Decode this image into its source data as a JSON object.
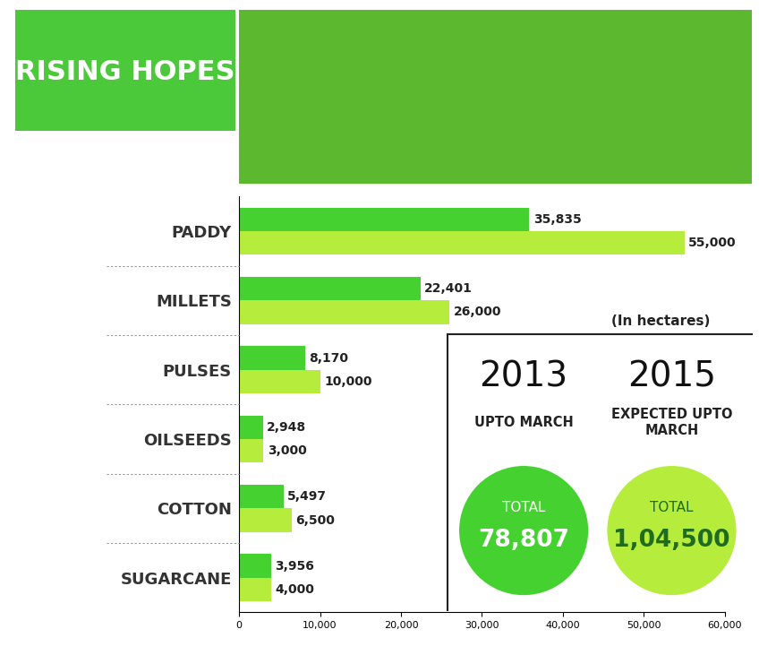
{
  "chart_data": {
    "type": "bar",
    "title": "RISING HOPES",
    "unit_note": "(In hectares)",
    "orientation": "horizontal",
    "data_labels": true,
    "categories": [
      "PADDY",
      "MILLETS",
      "PULSES",
      "OILSEEDS",
      "COTTON",
      "SUGARCANE"
    ],
    "series": [
      {
        "name": "2013",
        "caption": "UPTO MARCH",
        "color": "#45d12f",
        "values": [
          35835,
          22401,
          8170,
          2948,
          5497,
          3956
        ],
        "value_labels": [
          "35,835",
          "22,401",
          "8,170",
          "2,948",
          "5,497",
          "3,956"
        ],
        "total_caption": "TOTAL",
        "total": "78,807"
      },
      {
        "name": "2015",
        "caption": "EXPECTED UPTO MARCH",
        "color": "#b6ec3c",
        "values": [
          55000,
          26000,
          10000,
          3000,
          6500,
          4000
        ],
        "value_labels": [
          "55,000",
          "26,000",
          "10,000",
          "3,000",
          "6,500",
          "4,000"
        ],
        "total_caption": "TOTAL",
        "total": "1,04,500"
      }
    ],
    "xlim": [
      0,
      60000
    ],
    "xticks": [
      0,
      {
        "value": 10000,
        "label": "10,000"
      },
      {
        "value": 20000,
        "label": "20,000"
      },
      {
        "value": 30000,
        "label": "30,000"
      },
      {
        "value": 40000,
        "label": "40,000"
      },
      {
        "value": 50000,
        "label": "50,000"
      },
      {
        "value": 60000,
        "label": "60,000"
      }
    ],
    "grid": false
  }
}
